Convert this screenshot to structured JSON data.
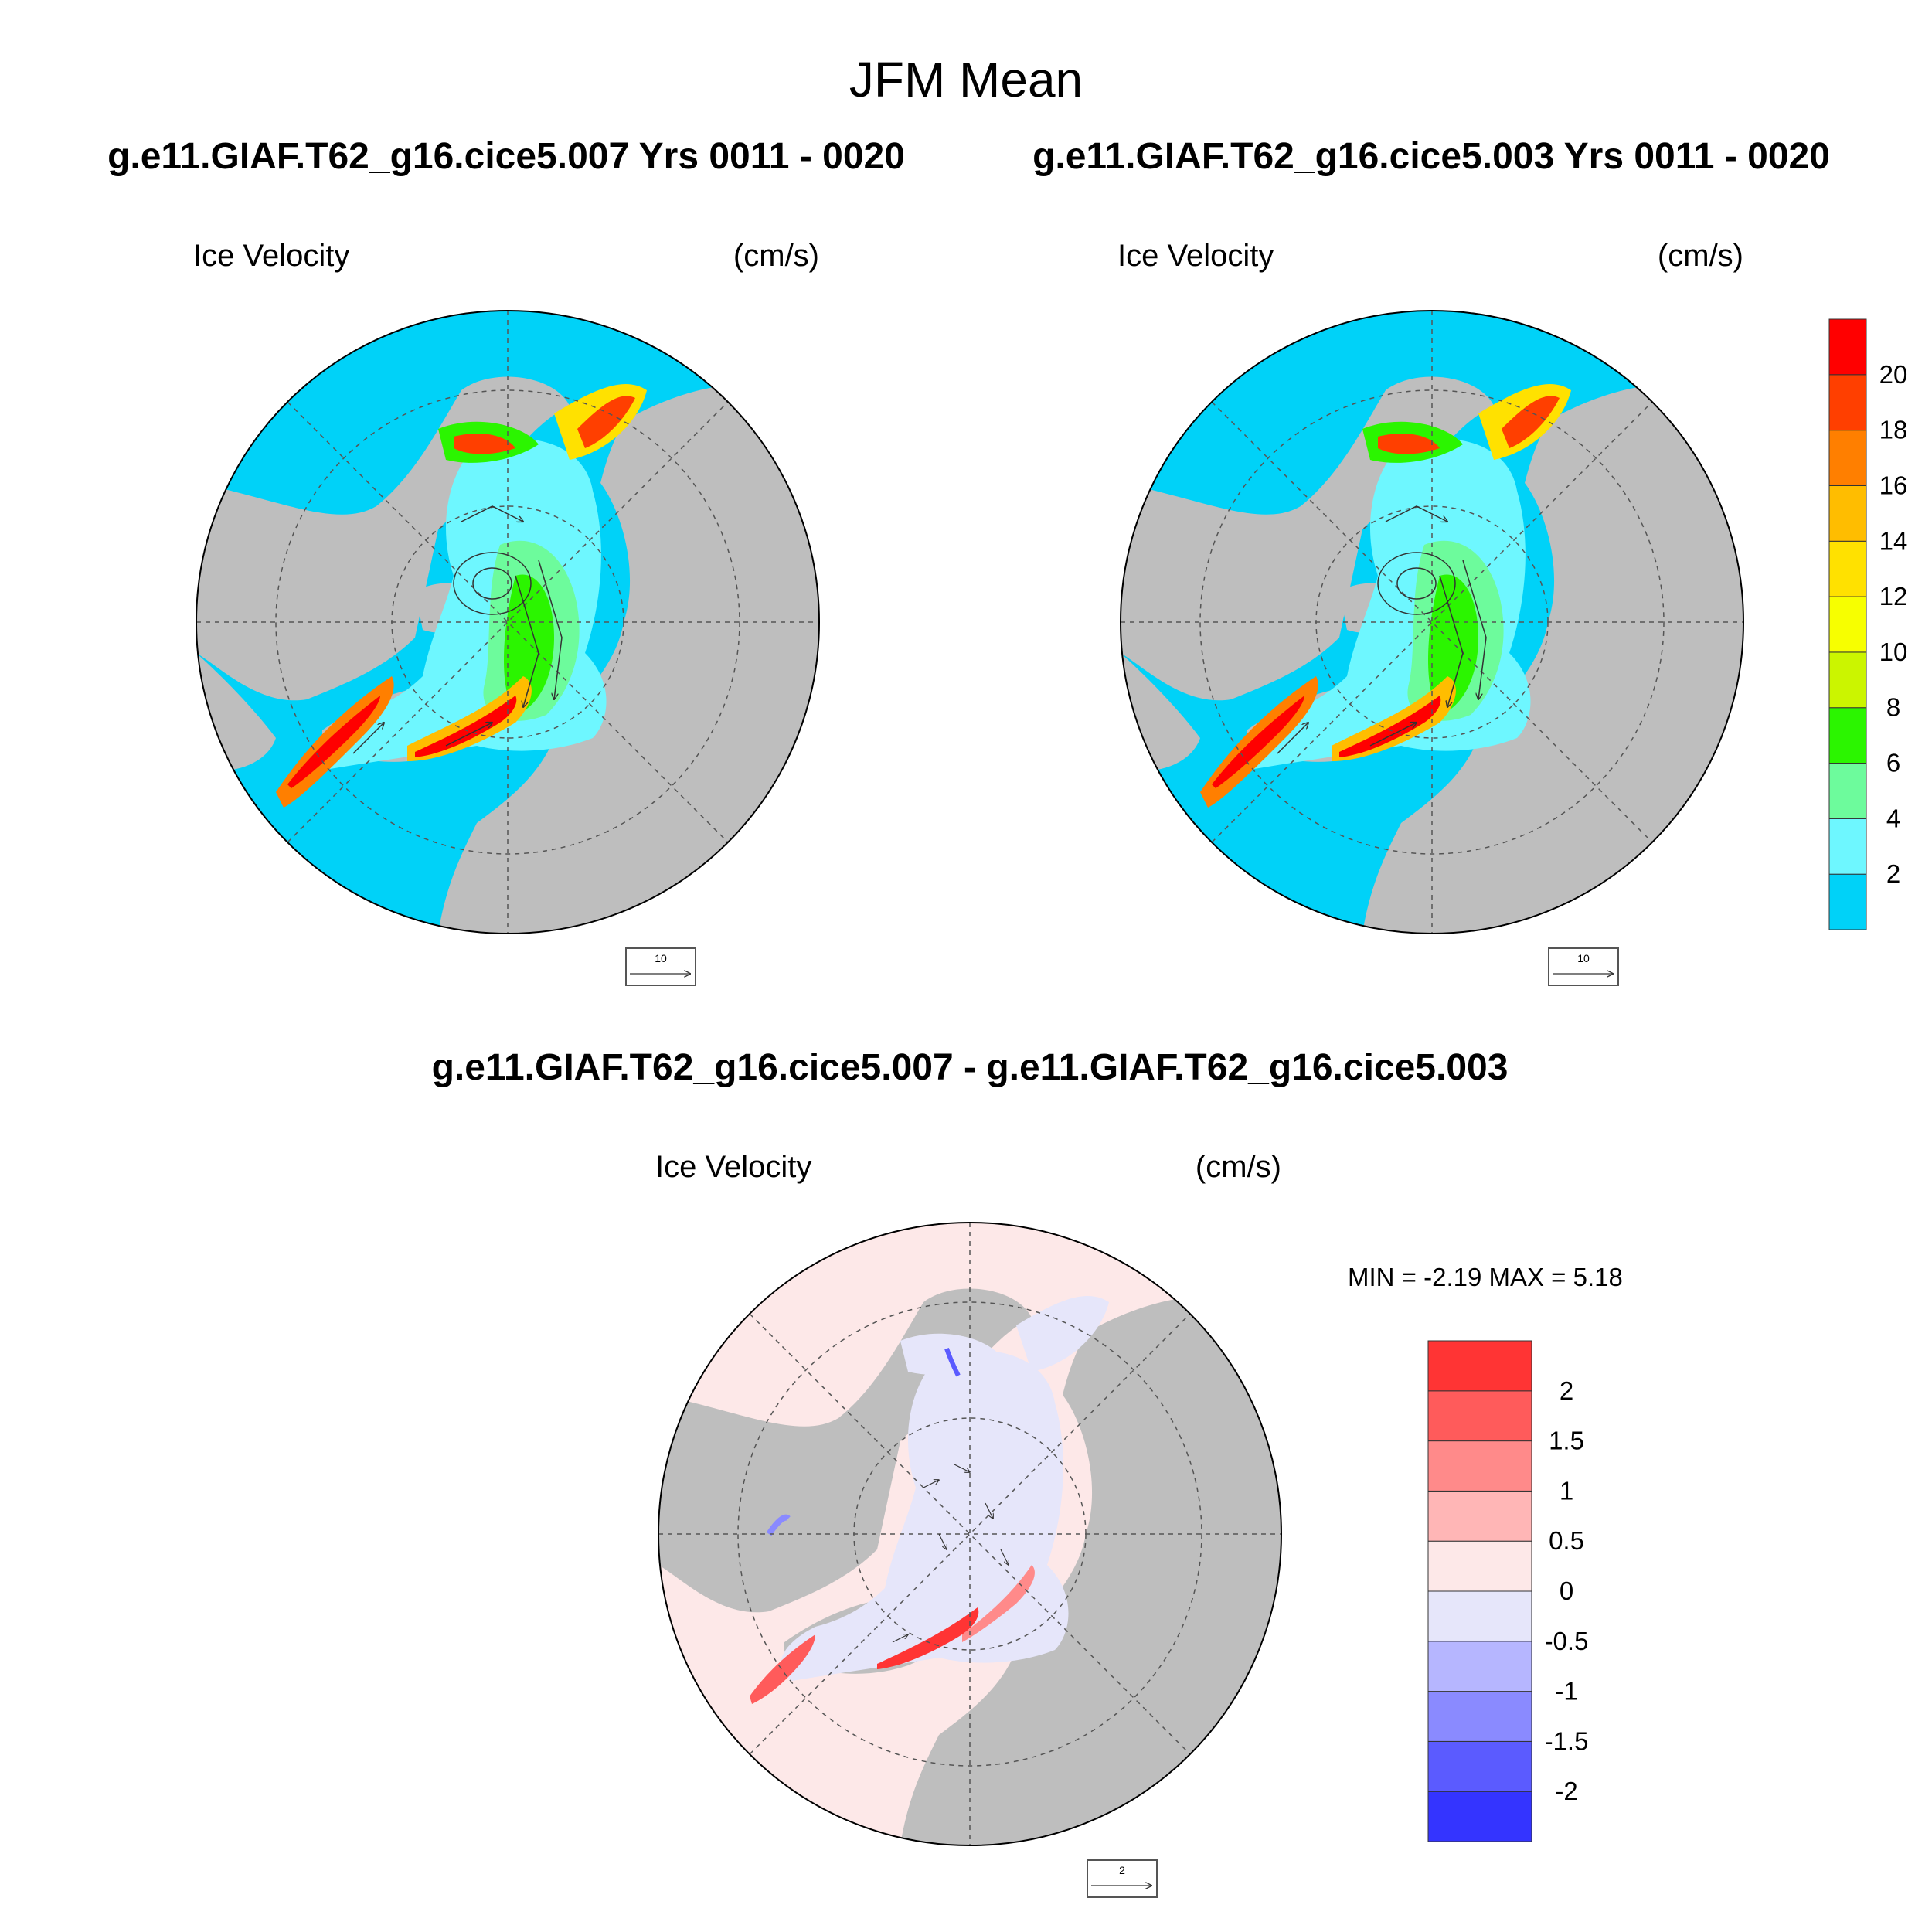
{
  "title": "JFM Mean",
  "top_left": {
    "run_label": "g.e11.GIAF.T62_g16.cice5.007  Yrs 0011 - 0020",
    "variable": "Ice Velocity",
    "units": "(cm/s)",
    "ref_vector_label": "10"
  },
  "top_right": {
    "run_label": "g.e11.GIAF.T62_g16.cice5.003  Yrs 0011 - 0020",
    "variable": "Ice Velocity",
    "units": "(cm/s)",
    "ref_vector_label": "10"
  },
  "bottom": {
    "diff_label": "g.e11.GIAF.T62_g16.cice5.007 - g.e11.GIAF.T62_g16.cice5.003",
    "variable": "Ice Velocity",
    "units": "(cm/s)",
    "minmax_label": "MIN =  -2.19 MAX =   5.18",
    "min": -2.19,
    "max": 5.18,
    "ref_vector_label": "2"
  },
  "colorbar_velocity": {
    "labels": [
      "2",
      "4",
      "6",
      "8",
      "10",
      "12",
      "14",
      "16",
      "18",
      "20"
    ],
    "colors": [
      "#00d2f8",
      "#6ef7ff",
      "#6dfb9c",
      "#2bf500",
      "#cbf500",
      "#f7ff00",
      "#ffe100",
      "#ffbd00",
      "#ff7f00",
      "#ff3f00",
      "#ff0000"
    ]
  },
  "colorbar_diff": {
    "labels": [
      "-2",
      "-1.5",
      "-1",
      "-0.5",
      "0",
      "0.5",
      "1",
      "1.5",
      "2"
    ],
    "colors": [
      "#3434ff",
      "#5b5bff",
      "#8a8aff",
      "#b6b6ff",
      "#e6e6fa",
      "#fde8e8",
      "#ffb6b6",
      "#ff8a8a",
      "#ff5b5b",
      "#ff3434"
    ]
  },
  "map_colors": {
    "land": "#bebebe",
    "open_ocean_velocity": "#00d2f8",
    "open_ocean_diff": "#fde8e8",
    "ice_diff": "#e6e6fa",
    "ice_edge": "#ffffff"
  }
}
